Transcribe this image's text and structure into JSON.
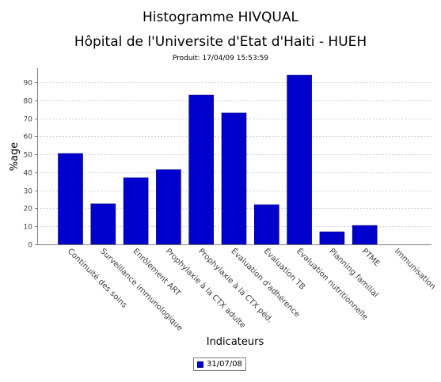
{
  "chart_data": {
    "type": "bar",
    "title": "Histogramme HIVQUAL",
    "subtitle_line": "Hôpital de l'Universite d'Etat d'Haiti - HUEH",
    "produced": "Produit: 17/04/09 15:53:59",
    "xlabel": "Indicateurs",
    "ylabel": "%age",
    "ylim": [
      0,
      98
    ],
    "yticks": [
      0,
      10,
      20,
      30,
      40,
      50,
      60,
      70,
      80,
      90
    ],
    "grid": true,
    "legend_position": "bottom",
    "categories": [
      "Continuité des soins",
      "Surveillance immunologique",
      "Enrôlement ART",
      "Prophylaxie à la CTX adulte",
      "Prophylaxie à la CTX péd.",
      "Évaluation d'adhérence",
      "Évaluation TB",
      "Évaluation nutritionnelle",
      "Planning familial",
      "PTME",
      "Immunisation"
    ],
    "series": [
      {
        "name": "31/07/08",
        "color": "#0000cc",
        "values": [
          50.5,
          22.5,
          37,
          41.5,
          83,
          73,
          22,
          94,
          7,
          10.5,
          0
        ]
      }
    ]
  }
}
